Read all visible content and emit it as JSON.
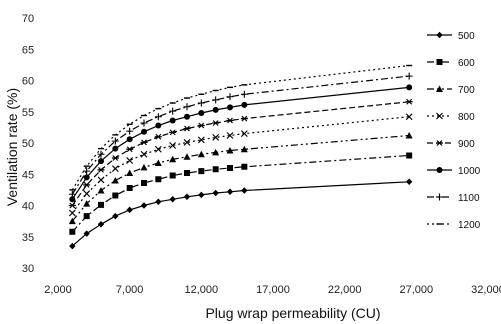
{
  "chart_data": {
    "type": "line",
    "title": "",
    "xlabel": "Plug wrap permeability (CU)",
    "ylabel": "Ventilation rate (%)",
    "xlim": [
      2000,
      32000
    ],
    "ylim": [
      30,
      70
    ],
    "x_ticks": [
      2000,
      7000,
      12000,
      17000,
      22000,
      27000,
      32000
    ],
    "x_tick_labels": [
      "2,000",
      "7,000",
      "12,000",
      "17,000",
      "22,000",
      "27,000",
      "32,000"
    ],
    "y_ticks": [
      30,
      35,
      40,
      45,
      50,
      55,
      60,
      65,
      70
    ],
    "y_tick_labels": [
      "30",
      "35",
      "40",
      "45",
      "50",
      "55",
      "60",
      "65",
      "70"
    ],
    "grid": false,
    "legend_position": "right",
    "x": [
      3000,
      4000,
      5000,
      6000,
      7000,
      8000,
      9000,
      10000,
      11000,
      12000,
      13000,
      14000,
      15000,
      26500
    ],
    "series": [
      {
        "name": "500",
        "color": "#000000",
        "marker": "diamond",
        "dash": "solid",
        "values": [
          33.5,
          35.5,
          37.0,
          38.3,
          39.3,
          40.0,
          40.6,
          41.0,
          41.4,
          41.7,
          42.0,
          42.2,
          42.4,
          43.8
        ]
      },
      {
        "name": "600",
        "color": "#000000",
        "marker": "square",
        "dash": "dashdot",
        "values": [
          35.8,
          38.3,
          40.1,
          41.6,
          42.8,
          43.6,
          44.2,
          44.8,
          45.2,
          45.5,
          45.8,
          46.0,
          46.2,
          48.0
        ]
      },
      {
        "name": "700",
        "color": "#000000",
        "marker": "triangle",
        "dash": "dashdotdot",
        "values": [
          37.5,
          40.3,
          42.4,
          44.0,
          45.2,
          46.1,
          46.8,
          47.4,
          47.8,
          48.2,
          48.5,
          48.8,
          49.0,
          51.2
        ]
      },
      {
        "name": "800",
        "color": "#000000",
        "marker": "x",
        "dash": "dotted",
        "values": [
          38.8,
          41.9,
          44.1,
          45.9,
          47.2,
          48.2,
          49.0,
          49.6,
          50.1,
          50.5,
          50.9,
          51.2,
          51.5,
          54.2
        ]
      },
      {
        "name": "900",
        "color": "#000000",
        "marker": "star",
        "dash": "dashed",
        "values": [
          40.0,
          43.3,
          45.7,
          47.6,
          49.0,
          50.1,
          51.0,
          51.7,
          52.3,
          52.8,
          53.2,
          53.6,
          53.9,
          56.6
        ]
      },
      {
        "name": "1000",
        "color": "#000000",
        "marker": "circle",
        "dash": "solid",
        "values": [
          41.0,
          44.5,
          47.1,
          49.1,
          50.6,
          51.8,
          52.8,
          53.6,
          54.2,
          54.8,
          55.3,
          55.7,
          56.1,
          58.9
        ]
      },
      {
        "name": "1100",
        "color": "#000000",
        "marker": "plus",
        "dash": "dashdot",
        "values": [
          41.8,
          45.5,
          48.2,
          50.3,
          51.9,
          53.2,
          54.2,
          55.1,
          55.8,
          56.4,
          56.9,
          57.4,
          57.8,
          60.7
        ]
      },
      {
        "name": "1200",
        "color": "#000000",
        "marker": "dash",
        "dash": "dotted",
        "values": [
          42.5,
          46.3,
          49.1,
          51.3,
          53.0,
          54.4,
          55.5,
          56.4,
          57.2,
          57.8,
          58.4,
          58.9,
          59.3,
          62.4
        ]
      }
    ]
  }
}
